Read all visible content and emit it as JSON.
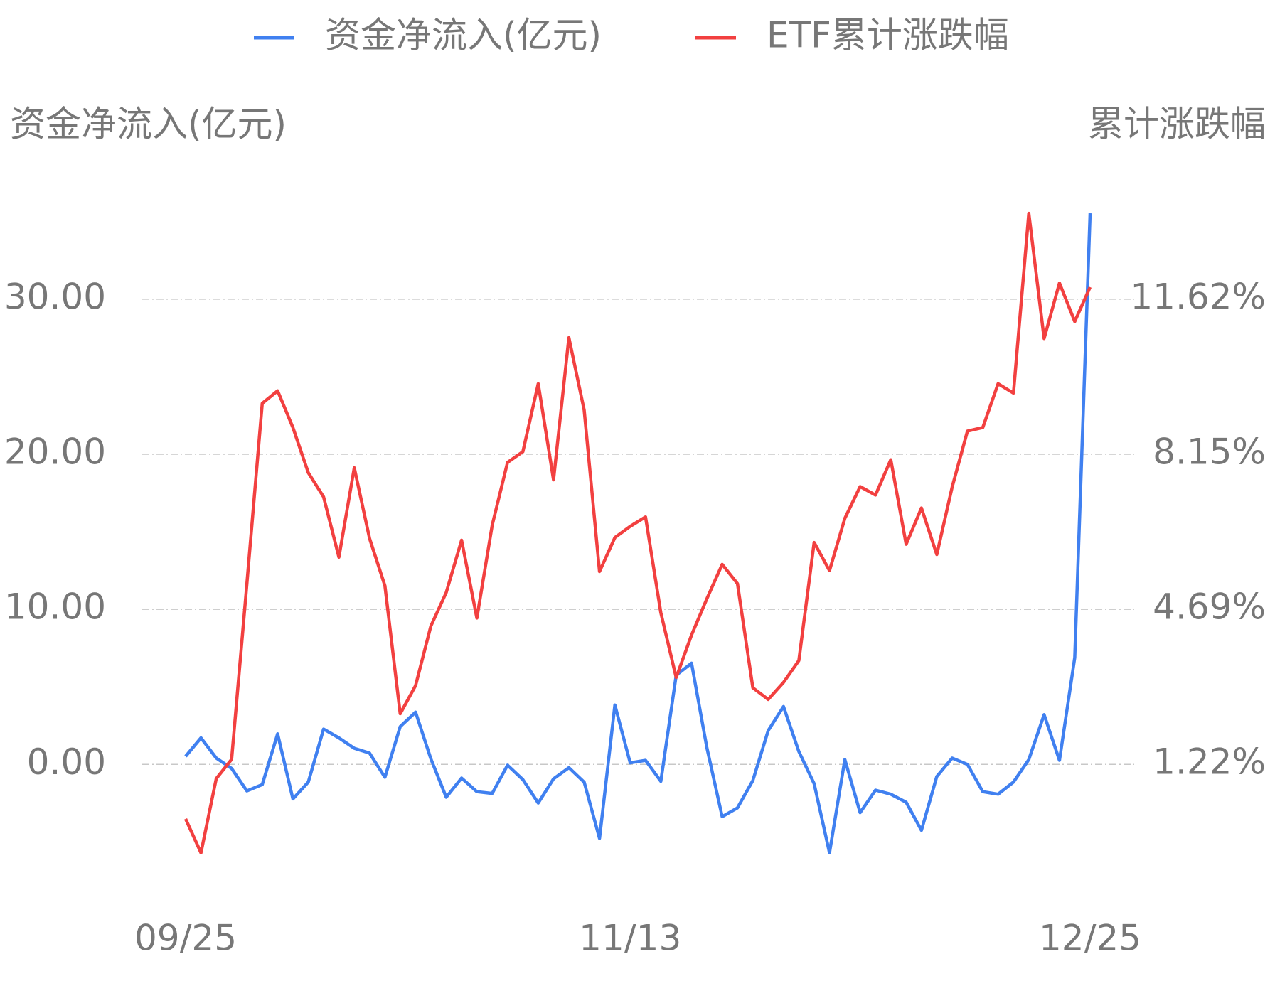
{
  "chart_data": {
    "type": "line",
    "y_label": "资金净流入(亿元)",
    "y2_label": "累计涨跌幅",
    "categories": [
      "09/25",
      null,
      null,
      null,
      null,
      null,
      null,
      null,
      null,
      null,
      null,
      null,
      null,
      null,
      null,
      null,
      null,
      null,
      null,
      null,
      null,
      null,
      null,
      null,
      null,
      null,
      null,
      null,
      null,
      "11/13",
      null,
      null,
      null,
      null,
      null,
      null,
      null,
      null,
      null,
      null,
      null,
      null,
      null,
      null,
      null,
      null,
      null,
      null,
      null,
      null,
      null,
      null,
      null,
      null,
      null,
      null,
      null,
      null,
      null,
      "12/25"
    ],
    "series": [
      {
        "name": "资金净流入(亿元)",
        "color": "#4080f0",
        "values": [
          0.52,
          1.71,
          0.41,
          -0.26,
          -1.71,
          -1.3,
          1.97,
          -2.23,
          -1.14,
          2.28,
          1.71,
          1.04,
          0.73,
          -0.83,
          2.44,
          3.37,
          0.36,
          -2.12,
          -0.88,
          -1.76,
          -1.87,
          -0.05,
          -0.98,
          -2.49,
          -0.93,
          -0.21,
          -1.14,
          -4.77,
          3.83,
          0.1,
          0.26,
          -1.09,
          5.75,
          6.53,
          1.09,
          -3.37,
          -2.8,
          -1.04,
          2.18,
          3.73,
          0.83,
          -1.24,
          -5.7,
          0.31,
          -3.11,
          -1.66,
          -1.92,
          -2.44,
          -4.25,
          -0.78,
          0.41,
          0.0,
          -1.76,
          -1.92,
          -1.14,
          0.31,
          3.21,
          0.26,
          6.89,
          35.54
        ]
      },
      {
        "name": "ETF累计涨跌幅",
        "color": "#f24040",
        "axis": "y2",
        "values": [
          0.0,
          -0.76,
          0.9,
          1.33,
          5.26,
          9.29,
          9.57,
          8.75,
          7.74,
          7.2,
          5.85,
          7.85,
          6.27,
          5.21,
          2.35,
          2.98,
          4.31,
          5.06,
          6.23,
          4.49,
          6.57,
          7.97,
          8.21,
          9.73,
          7.58,
          10.76,
          9.14,
          5.53,
          6.29,
          6.54,
          6.75,
          4.61,
          3.16,
          4.11,
          4.92,
          5.69,
          5.26,
          2.93,
          2.67,
          3.05,
          3.54,
          6.18,
          5.55,
          6.72,
          7.43,
          7.24,
          8.03,
          6.14,
          6.95,
          5.91,
          7.42,
          8.67,
          8.75,
          9.73,
          9.52,
          13.54,
          10.74,
          11.98,
          11.12,
          11.89
        ]
      }
    ],
    "ylim": [
      -7,
      36
    ],
    "yticks": [
      {
        "value": 0,
        "label": "0.00"
      },
      {
        "value": 10,
        "label": "10.00"
      },
      {
        "value": 20,
        "label": "20.00"
      },
      {
        "value": 30,
        "label": "30.00"
      }
    ],
    "y2lim": [
      -1.21,
      13.7
    ],
    "y2ticks": [
      {
        "value": 1.22,
        "label": "1.22%"
      },
      {
        "value": 4.69,
        "label": "4.69%"
      },
      {
        "value": 8.15,
        "label": "8.15%"
      },
      {
        "value": 11.62,
        "label": "11.62%"
      }
    ],
    "grid": true
  }
}
